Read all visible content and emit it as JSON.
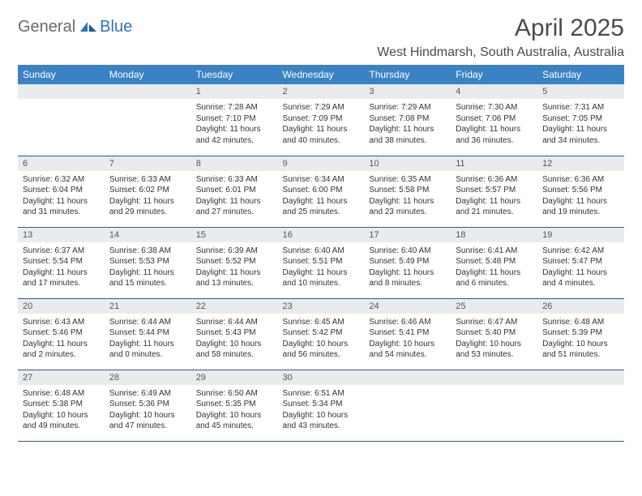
{
  "logo": {
    "general": "General",
    "blue": "Blue"
  },
  "title": "April 2025",
  "location": "West Hindmarsh, South Australia, Australia",
  "colors": {
    "header_bg": "#3b82c4",
    "header_text": "#ffffff",
    "daynum_bg": "#e9ecef",
    "row_border": "#2a5d8a",
    "text": "#333333",
    "logo_blue": "#2a76b8",
    "logo_grey": "#6a6a6a"
  },
  "weekdays": [
    "Sunday",
    "Monday",
    "Tuesday",
    "Wednesday",
    "Thursday",
    "Friday",
    "Saturday"
  ],
  "weeks": [
    [
      {
        "day": "",
        "sunrise": "",
        "sunset": "",
        "daylight": ""
      },
      {
        "day": "",
        "sunrise": "",
        "sunset": "",
        "daylight": ""
      },
      {
        "day": "1",
        "sunrise": "Sunrise: 7:28 AM",
        "sunset": "Sunset: 7:10 PM",
        "daylight": "Daylight: 11 hours and 42 minutes."
      },
      {
        "day": "2",
        "sunrise": "Sunrise: 7:29 AM",
        "sunset": "Sunset: 7:09 PM",
        "daylight": "Daylight: 11 hours and 40 minutes."
      },
      {
        "day": "3",
        "sunrise": "Sunrise: 7:29 AM",
        "sunset": "Sunset: 7:08 PM",
        "daylight": "Daylight: 11 hours and 38 minutes."
      },
      {
        "day": "4",
        "sunrise": "Sunrise: 7:30 AM",
        "sunset": "Sunset: 7:06 PM",
        "daylight": "Daylight: 11 hours and 36 minutes."
      },
      {
        "day": "5",
        "sunrise": "Sunrise: 7:31 AM",
        "sunset": "Sunset: 7:05 PM",
        "daylight": "Daylight: 11 hours and 34 minutes."
      }
    ],
    [
      {
        "day": "6",
        "sunrise": "Sunrise: 6:32 AM",
        "sunset": "Sunset: 6:04 PM",
        "daylight": "Daylight: 11 hours and 31 minutes."
      },
      {
        "day": "7",
        "sunrise": "Sunrise: 6:33 AM",
        "sunset": "Sunset: 6:02 PM",
        "daylight": "Daylight: 11 hours and 29 minutes."
      },
      {
        "day": "8",
        "sunrise": "Sunrise: 6:33 AM",
        "sunset": "Sunset: 6:01 PM",
        "daylight": "Daylight: 11 hours and 27 minutes."
      },
      {
        "day": "9",
        "sunrise": "Sunrise: 6:34 AM",
        "sunset": "Sunset: 6:00 PM",
        "daylight": "Daylight: 11 hours and 25 minutes."
      },
      {
        "day": "10",
        "sunrise": "Sunrise: 6:35 AM",
        "sunset": "Sunset: 5:58 PM",
        "daylight": "Daylight: 11 hours and 23 minutes."
      },
      {
        "day": "11",
        "sunrise": "Sunrise: 6:36 AM",
        "sunset": "Sunset: 5:57 PM",
        "daylight": "Daylight: 11 hours and 21 minutes."
      },
      {
        "day": "12",
        "sunrise": "Sunrise: 6:36 AM",
        "sunset": "Sunset: 5:56 PM",
        "daylight": "Daylight: 11 hours and 19 minutes."
      }
    ],
    [
      {
        "day": "13",
        "sunrise": "Sunrise: 6:37 AM",
        "sunset": "Sunset: 5:54 PM",
        "daylight": "Daylight: 11 hours and 17 minutes."
      },
      {
        "day": "14",
        "sunrise": "Sunrise: 6:38 AM",
        "sunset": "Sunset: 5:53 PM",
        "daylight": "Daylight: 11 hours and 15 minutes."
      },
      {
        "day": "15",
        "sunrise": "Sunrise: 6:39 AM",
        "sunset": "Sunset: 5:52 PM",
        "daylight": "Daylight: 11 hours and 13 minutes."
      },
      {
        "day": "16",
        "sunrise": "Sunrise: 6:40 AM",
        "sunset": "Sunset: 5:51 PM",
        "daylight": "Daylight: 11 hours and 10 minutes."
      },
      {
        "day": "17",
        "sunrise": "Sunrise: 6:40 AM",
        "sunset": "Sunset: 5:49 PM",
        "daylight": "Daylight: 11 hours and 8 minutes."
      },
      {
        "day": "18",
        "sunrise": "Sunrise: 6:41 AM",
        "sunset": "Sunset: 5:48 PM",
        "daylight": "Daylight: 11 hours and 6 minutes."
      },
      {
        "day": "19",
        "sunrise": "Sunrise: 6:42 AM",
        "sunset": "Sunset: 5:47 PM",
        "daylight": "Daylight: 11 hours and 4 minutes."
      }
    ],
    [
      {
        "day": "20",
        "sunrise": "Sunrise: 6:43 AM",
        "sunset": "Sunset: 5:46 PM",
        "daylight": "Daylight: 11 hours and 2 minutes."
      },
      {
        "day": "21",
        "sunrise": "Sunrise: 6:44 AM",
        "sunset": "Sunset: 5:44 PM",
        "daylight": "Daylight: 11 hours and 0 minutes."
      },
      {
        "day": "22",
        "sunrise": "Sunrise: 6:44 AM",
        "sunset": "Sunset: 5:43 PM",
        "daylight": "Daylight: 10 hours and 58 minutes."
      },
      {
        "day": "23",
        "sunrise": "Sunrise: 6:45 AM",
        "sunset": "Sunset: 5:42 PM",
        "daylight": "Daylight: 10 hours and 56 minutes."
      },
      {
        "day": "24",
        "sunrise": "Sunrise: 6:46 AM",
        "sunset": "Sunset: 5:41 PM",
        "daylight": "Daylight: 10 hours and 54 minutes."
      },
      {
        "day": "25",
        "sunrise": "Sunrise: 6:47 AM",
        "sunset": "Sunset: 5:40 PM",
        "daylight": "Daylight: 10 hours and 53 minutes."
      },
      {
        "day": "26",
        "sunrise": "Sunrise: 6:48 AM",
        "sunset": "Sunset: 5:39 PM",
        "daylight": "Daylight: 10 hours and 51 minutes."
      }
    ],
    [
      {
        "day": "27",
        "sunrise": "Sunrise: 6:48 AM",
        "sunset": "Sunset: 5:38 PM",
        "daylight": "Daylight: 10 hours and 49 minutes."
      },
      {
        "day": "28",
        "sunrise": "Sunrise: 6:49 AM",
        "sunset": "Sunset: 5:36 PM",
        "daylight": "Daylight: 10 hours and 47 minutes."
      },
      {
        "day": "29",
        "sunrise": "Sunrise: 6:50 AM",
        "sunset": "Sunset: 5:35 PM",
        "daylight": "Daylight: 10 hours and 45 minutes."
      },
      {
        "day": "30",
        "sunrise": "Sunrise: 6:51 AM",
        "sunset": "Sunset: 5:34 PM",
        "daylight": "Daylight: 10 hours and 43 minutes."
      },
      {
        "day": "",
        "sunrise": "",
        "sunset": "",
        "daylight": ""
      },
      {
        "day": "",
        "sunrise": "",
        "sunset": "",
        "daylight": ""
      },
      {
        "day": "",
        "sunrise": "",
        "sunset": "",
        "daylight": ""
      }
    ]
  ]
}
